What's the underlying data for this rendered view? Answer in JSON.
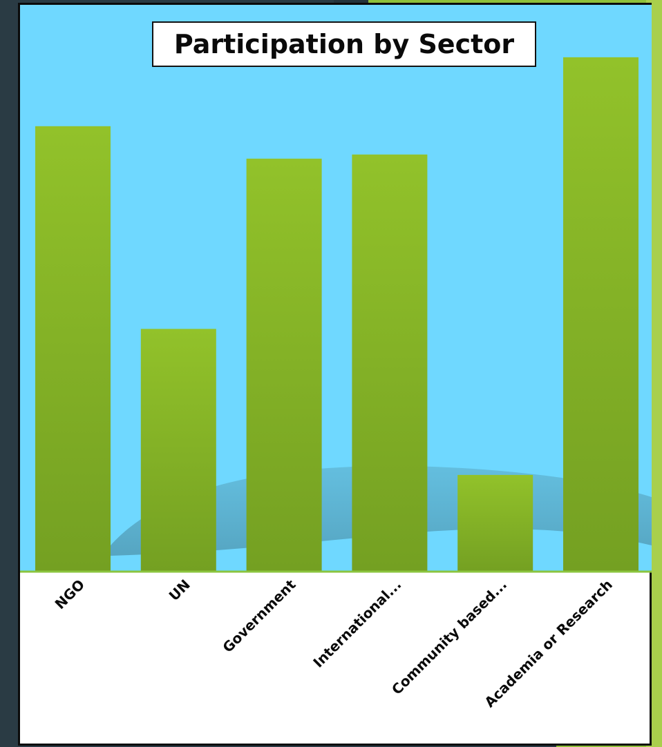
{
  "chart_data": {
    "type": "bar",
    "title": "Participation by Sector",
    "categories": [
      "NGO",
      "UN",
      "Government",
      "International...",
      "Community based...",
      "Academia or Research"
    ],
    "values": [
      86.6,
      47.2,
      80.3,
      81.1,
      18.8,
      100
    ],
    "ylim": [
      0,
      100
    ],
    "xlabel": "",
    "ylabel": "",
    "grid": false,
    "legend": "none",
    "colors": {
      "plot_background": "#6fd8ff",
      "bar_top": "#92c22a",
      "bar_bottom": "#74a022",
      "label_area": "#ffffff",
      "baseline": "#8bc53f"
    }
  }
}
